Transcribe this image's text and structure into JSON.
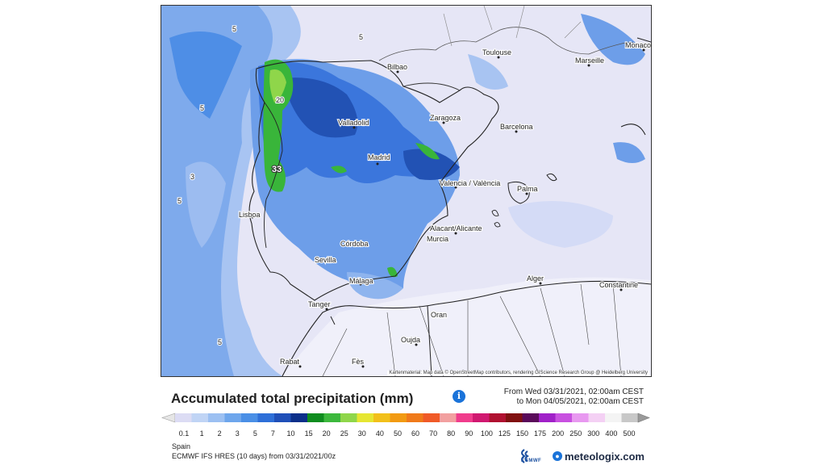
{
  "map": {
    "cities": [
      {
        "name": "Toulouse"
      },
      {
        "name": "Marseille"
      },
      {
        "name": "Monaco"
      },
      {
        "name": "Bilbao"
      },
      {
        "name": "Zaragoza"
      },
      {
        "name": "Barcelona"
      },
      {
        "name": "Valladolid"
      },
      {
        "name": "Madrid"
      },
      {
        "name": "Palma"
      },
      {
        "name": "Valencia / València"
      },
      {
        "name": "Lisboa"
      },
      {
        "name": "Alacant/Alicante"
      },
      {
        "name": "Córdoba"
      },
      {
        "name": "Murcia"
      },
      {
        "name": "Sevilla"
      },
      {
        "name": "Málaga"
      },
      {
        "name": "Alger"
      },
      {
        "name": "Constantine"
      },
      {
        "name": "Tanger"
      },
      {
        "name": "Oran"
      },
      {
        "name": "Oujda"
      },
      {
        "name": "Rabat"
      },
      {
        "name": "Fès"
      }
    ],
    "peak_value": "33",
    "contour_labels": [
      "5",
      "5",
      "5",
      "3",
      "20",
      "5",
      "5"
    ],
    "attribution": "Kartenmaterial: Map data © OpenStreetMap contributors, rendering GIScience Research Group @ Heidelberg University"
  },
  "header": {
    "title": "Accumulated total precipitation (mm)",
    "info_icon": "info-icon",
    "from_line": "From Wed 03/31/2021, 02:00am CEST",
    "to_line": "to Mon 04/05/2021, 02:00am CEST"
  },
  "legend": {
    "unit": "mm",
    "ticks": [
      "0.1",
      "1",
      "2",
      "3",
      "5",
      "7",
      "10",
      "15",
      "20",
      "25",
      "30",
      "40",
      "50",
      "60",
      "70",
      "80",
      "90",
      "100",
      "125",
      "150",
      "175",
      "200",
      "250",
      "300",
      "400",
      "500"
    ],
    "colors": [
      "#dcdcf4",
      "#c0d4f5",
      "#9cc0f2",
      "#6ea6ec",
      "#4a8fe6",
      "#2e6fd8",
      "#1f4fb8",
      "#0b2f8a",
      "#0e8c1e",
      "#3cb83c",
      "#8fd64a",
      "#e6e632",
      "#f2c01a",
      "#f29a12",
      "#f07a1a",
      "#f05a28",
      "#f2a0a0",
      "#f03c8c",
      "#d01870",
      "#b01030",
      "#801010",
      "#5a0a5a",
      "#a020c8",
      "#c850e0",
      "#e898f0",
      "#f4d0f4",
      "#f4f4f4",
      "#c8c8c8"
    ],
    "colors_scheme": "precipitation-scale"
  },
  "footer": {
    "region": "Spain",
    "model": "ECMWF IFS HRES  (10 days)  from 03/31/2021/00z",
    "ecmwf_label": "ECMWF",
    "brand": "meteologix.com",
    "brand_icon": "globe-icon"
  }
}
